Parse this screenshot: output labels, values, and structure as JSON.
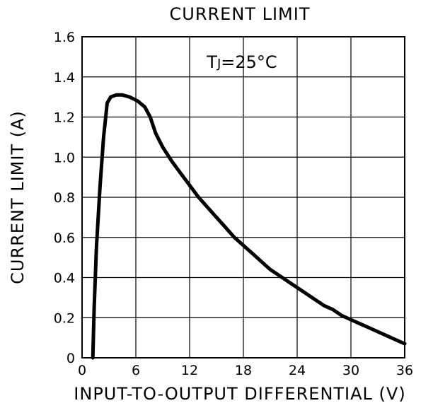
{
  "chart_data": {
    "type": "line",
    "title": "CURRENT LIMIT",
    "xlabel": "INPUT-TO-OUTPUT DIFFERENTIAL (V)",
    "ylabel": "CURRENT LIMIT (A)",
    "xlim": [
      0,
      36
    ],
    "ylim": [
      0,
      1.6
    ],
    "x_ticks": [
      "0",
      "6",
      "12",
      "18",
      "24",
      "30",
      "36"
    ],
    "y_ticks": [
      "0",
      "0.2",
      "0.4",
      "0.6",
      "0.8",
      "1.0",
      "1.2",
      "1.4",
      "1.6"
    ],
    "grid": true,
    "annotations": [
      {
        "text": "TJ=25°C"
      }
    ],
    "series": [
      {
        "x": [
          1.2,
          1.35,
          1.6,
          2.0,
          2.4,
          2.8,
          3.2,
          3.8,
          4.5,
          5.3,
          6.2,
          7.0,
          7.6,
          8.2,
          9,
          10,
          11,
          12,
          13,
          14,
          15,
          16,
          17,
          18,
          19,
          20,
          21,
          22,
          23,
          24,
          25,
          26,
          27,
          28,
          29,
          30,
          31,
          32,
          33,
          34,
          35,
          36
        ],
        "y": [
          0.0,
          0.25,
          0.55,
          0.85,
          1.1,
          1.27,
          1.3,
          1.31,
          1.31,
          1.3,
          1.28,
          1.25,
          1.2,
          1.12,
          1.05,
          0.98,
          0.92,
          0.86,
          0.8,
          0.75,
          0.7,
          0.65,
          0.6,
          0.56,
          0.52,
          0.48,
          0.44,
          0.41,
          0.38,
          0.35,
          0.32,
          0.29,
          0.26,
          0.24,
          0.21,
          0.19,
          0.17,
          0.15,
          0.13,
          0.11,
          0.09,
          0.07
        ]
      }
    ]
  }
}
